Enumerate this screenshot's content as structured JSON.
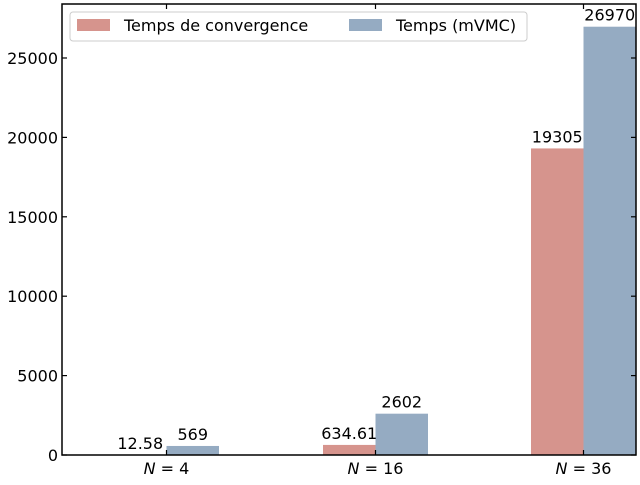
{
  "chart_data": {
    "type": "bar",
    "categories": [
      "N = 4",
      "N = 16",
      "N = 36"
    ],
    "category_display": [
      {
        "var": "N",
        "rest": " = 4"
      },
      {
        "var": "N",
        "rest": " = 16"
      },
      {
        "var": "N",
        "rest": " = 36"
      }
    ],
    "series": [
      {
        "name": "Temps de convergence",
        "color": "#d6948d",
        "values": [
          12.58,
          634.61,
          19305
        ],
        "labels": [
          "12.58",
          "634.61",
          "19305"
        ]
      },
      {
        "name": "Temps (mVMC)",
        "color": "#95abc2",
        "values": [
          569,
          2602,
          26970
        ],
        "labels": [
          "569",
          "2602",
          "26970"
        ]
      }
    ],
    "title": "",
    "xlabel": "",
    "ylabel": "",
    "ylim": [
      0,
      28400
    ],
    "yticks": [
      0,
      5000,
      10000,
      15000,
      20000,
      25000
    ],
    "ytick_labels": [
      "0",
      "5000",
      "10000",
      "15000",
      "20000",
      "25000"
    ],
    "grid": false,
    "legend_position": "top-left",
    "legend_columns": 2
  }
}
